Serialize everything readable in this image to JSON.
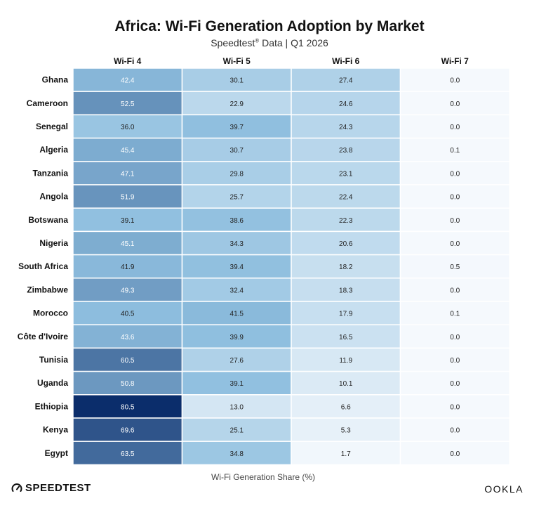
{
  "header": {
    "title": "Africa: Wi-Fi Generation Adoption by Market",
    "subtitle_brand": "Speedtest",
    "subtitle_reg": "®",
    "subtitle_rest": " Data | Q1 2026"
  },
  "chart_data": {
    "type": "heatmap",
    "title": "Africa: Wi-Fi Generation Adoption by Market",
    "subtitle": "Speedtest® Data | Q1 2026",
    "xlabel": "Wi-Fi Generation Share (%)",
    "columns": [
      "Wi-Fi 4",
      "Wi-Fi 5",
      "Wi-Fi 6",
      "Wi-Fi 7"
    ],
    "rows": [
      "Ghana",
      "Cameroon",
      "Senegal",
      "Algeria",
      "Tanzania",
      "Angola",
      "Botswana",
      "Nigeria",
      "South Africa",
      "Zimbabwe",
      "Morocco",
      "Côte d'Ivoire",
      "Tunisia",
      "Uganda",
      "Ethiopia",
      "Kenya",
      "Egypt"
    ],
    "values": [
      [
        42.4,
        30.1,
        27.4,
        0.0
      ],
      [
        52.5,
        22.9,
        24.6,
        0.0
      ],
      [
        36.0,
        39.7,
        24.3,
        0.0
      ],
      [
        45.4,
        30.7,
        23.8,
        0.1
      ],
      [
        47.1,
        29.8,
        23.1,
        0.0
      ],
      [
        51.9,
        25.7,
        22.4,
        0.0
      ],
      [
        39.1,
        38.6,
        22.3,
        0.0
      ],
      [
        45.1,
        34.3,
        20.6,
        0.0
      ],
      [
        41.9,
        39.4,
        18.2,
        0.5
      ],
      [
        49.3,
        32.4,
        18.3,
        0.0
      ],
      [
        40.5,
        41.5,
        17.9,
        0.1
      ],
      [
        43.6,
        39.9,
        16.5,
        0.0
      ],
      [
        60.5,
        27.6,
        11.9,
        0.0
      ],
      [
        50.8,
        39.1,
        10.1,
        0.0
      ],
      [
        80.5,
        13.0,
        6.6,
        0.0
      ],
      [
        69.6,
        25.1,
        5.3,
        0.0
      ],
      [
        63.5,
        34.8,
        1.7,
        0.0
      ]
    ],
    "color_scale": {
      "low": "#f5f9fd",
      "mid": "#8fbfdf",
      "high": "#0b2d6b"
    }
  },
  "footer": {
    "brand_left": "SPEEDTEST",
    "brand_right": "OOKLA"
  }
}
